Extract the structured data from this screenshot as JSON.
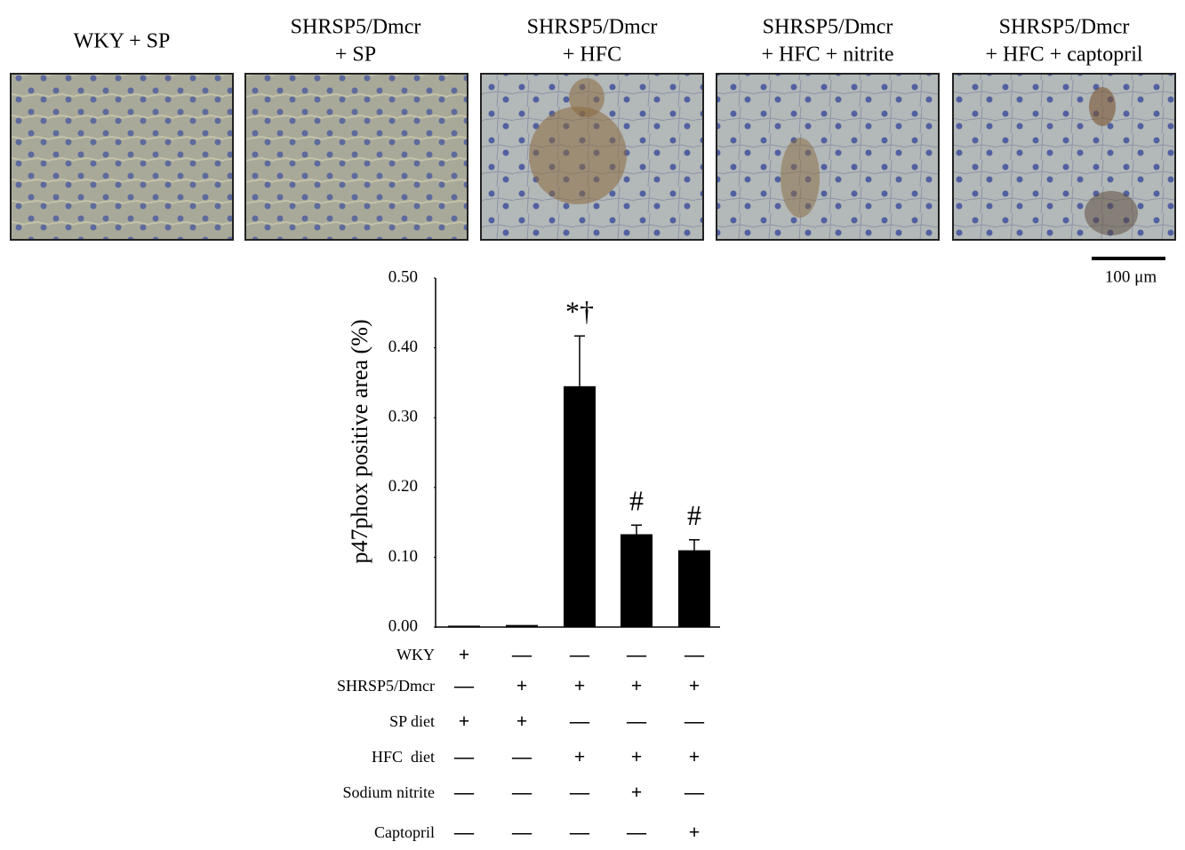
{
  "micrographs": {
    "titles": [
      [
        "WKY + SP"
      ],
      [
        "SHRSP5/Dmcr",
        "+ SP"
      ],
      [
        "SHRSP5/Dmcr",
        "+ HFC"
      ],
      [
        "SHRSP5/Dmcr",
        "+ HFC + nitrite"
      ],
      [
        "SHRSP5/Dmcr",
        "+ HFC + captopril"
      ]
    ],
    "scale_bar": "100 μm"
  },
  "chart_data": {
    "type": "bar",
    "ylabel": "p47phox positive area (%)",
    "values": [
      0.002,
      0.003,
      0.345,
      0.133,
      0.11
    ],
    "errors": [
      0,
      0,
      0.072,
      0.013,
      0.015
    ],
    "annotations": [
      null,
      null,
      "*†",
      "#",
      "#"
    ],
    "color": "#000000",
    "ylim": [
      0,
      0.5
    ],
    "yticks": [
      {
        "value": 0,
        "label": "0.00"
      },
      {
        "value": 0.1,
        "label": "0.10"
      },
      {
        "value": 0.2,
        "label": "0.20"
      },
      {
        "value": 0.3,
        "label": "0.30"
      },
      {
        "value": 0.4,
        "label": "0.40"
      },
      {
        "value": 0.5,
        "label": "0.50"
      }
    ]
  },
  "table": {
    "rows": [
      {
        "label": "WKY",
        "cells": [
          "+",
          "—",
          "—",
          "—",
          "—"
        ]
      },
      {
        "label": "SHRSP5/Dmcr",
        "cells": [
          "—",
          "+",
          "+",
          "+",
          "+"
        ]
      },
      {
        "label": "SP diet",
        "cells": [
          "+",
          "+",
          "—",
          "—",
          "—"
        ]
      },
      {
        "label": "HFC  diet",
        "cells": [
          "—",
          "—",
          "+",
          "+",
          "+"
        ]
      },
      {
        "label": "Sodium nitrite",
        "cells": [
          "—",
          "—",
          "—",
          "+",
          "—"
        ]
      },
      {
        "label": "Captopril",
        "cells": [
          "—",
          "—",
          "—",
          "—",
          "+"
        ]
      }
    ]
  }
}
